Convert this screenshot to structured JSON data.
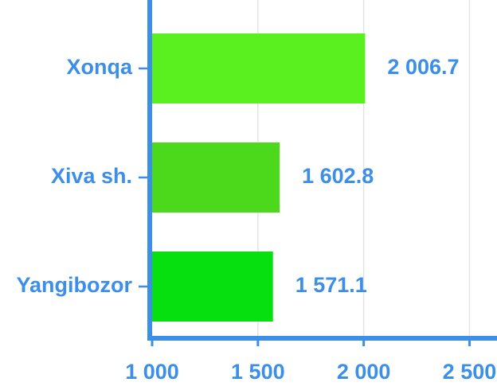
{
  "chart_data": {
    "type": "bar",
    "orientation": "horizontal",
    "categories": [
      "Xonqa",
      "Xiva sh.",
      "Yangibozor"
    ],
    "values": [
      2006.7,
      1602.8,
      1571.1
    ],
    "value_labels": [
      "2 006.7",
      "1 602.8",
      "1 571.1"
    ],
    "colors": [
      "#5aef1f",
      "#4cd91b",
      "#06e00f"
    ],
    "xlim": [
      1000,
      2630
    ],
    "xticks": [
      {
        "value": 1000,
        "label": "1 000"
      },
      {
        "value": 1500,
        "label": "1 500"
      },
      {
        "value": 2000,
        "label": "2 000"
      },
      {
        "value": 2500,
        "label": "2 500"
      }
    ],
    "grid": true
  }
}
